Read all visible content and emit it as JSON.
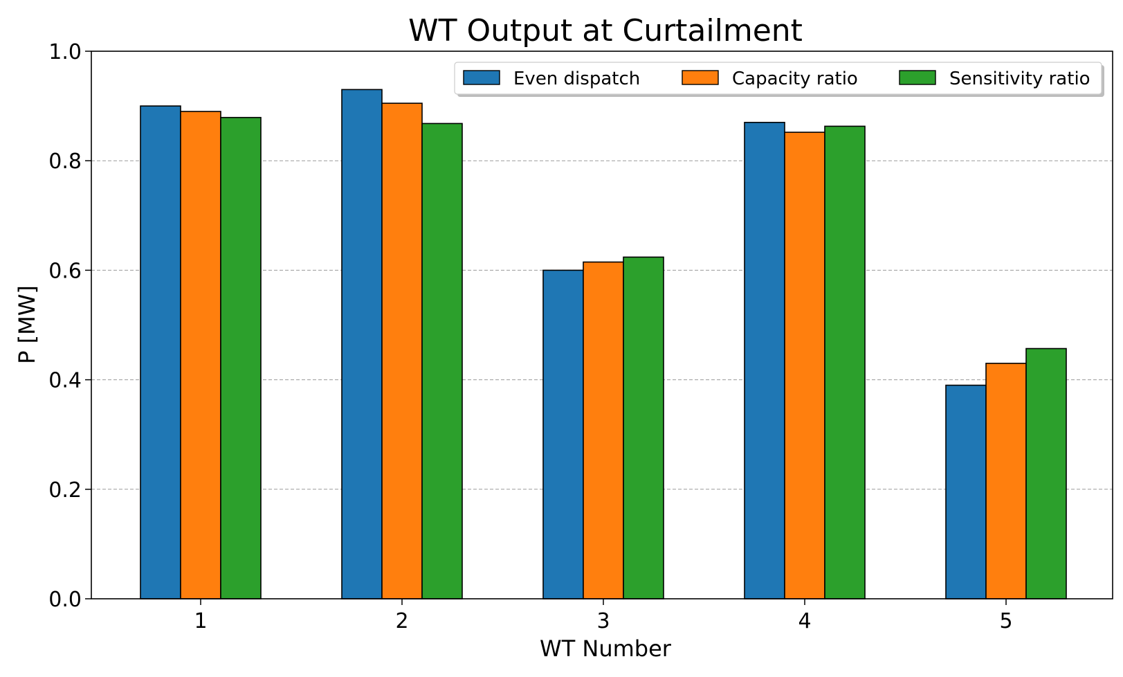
{
  "chart_data": {
    "type": "bar",
    "title": "WT Output at Curtailment",
    "xlabel": "WT Number",
    "ylabel": "P [MW]",
    "categories": [
      "1",
      "2",
      "3",
      "4",
      "5"
    ],
    "series": [
      {
        "name": "Even dispatch",
        "color": "#1f77b4",
        "values": [
          0.9,
          0.93,
          0.6,
          0.87,
          0.39
        ]
      },
      {
        "name": "Capacity ratio",
        "color": "#ff7f0e",
        "values": [
          0.89,
          0.905,
          0.615,
          0.852,
          0.43
        ]
      },
      {
        "name": "Sensitivity ratio",
        "color": "#2ca02c",
        "values": [
          0.879,
          0.868,
          0.624,
          0.863,
          0.457
        ]
      }
    ],
    "ylim": [
      0.0,
      1.0
    ],
    "yticks": [
      "0.0",
      "0.2",
      "0.4",
      "0.6",
      "0.8",
      "1.0"
    ],
    "grid": "horizontal dashed",
    "legend_position": "top-right"
  }
}
